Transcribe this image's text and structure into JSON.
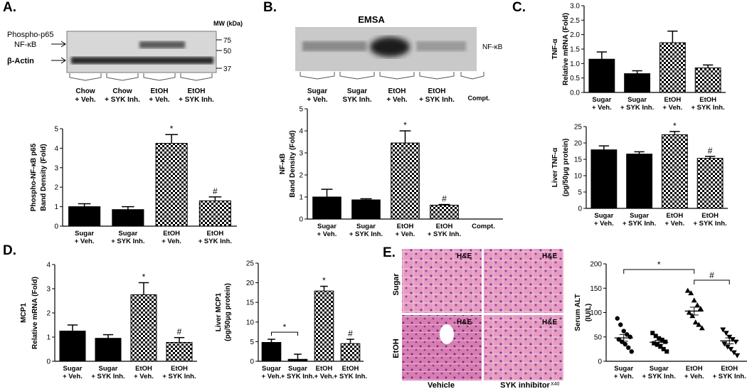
{
  "panel_letters": [
    "A.",
    "B.",
    "C.",
    "D.",
    "E."
  ],
  "blot": {
    "labels": [
      "Phospho-p65",
      "NF-κB",
      "β-Actin"
    ],
    "mw_header": "MW (kDa)",
    "mw_values": [
      "75",
      "50",
      "37"
    ],
    "lanes": [
      [
        "Chow",
        "+ Veh."
      ],
      [
        "Chow",
        "+ SYK Inh."
      ],
      [
        "EtOH",
        "+ Veh."
      ],
      [
        "EtOH",
        "+ SYK Inh."
      ]
    ]
  },
  "emsa": {
    "title": "EMSA",
    "band_label": "NF-κB",
    "lanes": [
      [
        "Sugar",
        "+ Veh."
      ],
      [
        "Sugar",
        "SYK Inh."
      ],
      [
        "EtOH",
        "+ Veh."
      ],
      [
        "EtOH",
        "+ SYK Inh."
      ],
      [
        "Compt."
      ]
    ]
  },
  "histology": {
    "row_labels": [
      "Sugar",
      "EtOH"
    ],
    "col_labels": [
      "Vehicle",
      "SYK inhibitor"
    ],
    "stain": "H&E",
    "magnification": "X40"
  },
  "chart_data": [
    {
      "id": "A",
      "type": "bar",
      "ylabel": [
        "Phospho-NF-κB p65",
        "Band Density (Fold)"
      ],
      "ylim": [
        0,
        5
      ],
      "yticks": [
        0,
        1,
        2,
        3,
        4,
        5
      ],
      "categories": [
        [
          "Sugar",
          "+ Veh."
        ],
        [
          "Sugar",
          "+ SYK Inh."
        ],
        [
          "EtOH",
          "+ Veh."
        ],
        [
          "EtOH",
          "+ SYK Inh."
        ]
      ],
      "values": [
        1.0,
        0.85,
        4.25,
        1.3
      ],
      "errors": [
        0.15,
        0.15,
        0.45,
        0.2
      ],
      "markers": [
        "",
        "",
        "*",
        "#"
      ],
      "fills": [
        "#000000",
        "#000000",
        "check",
        "check"
      ]
    },
    {
      "id": "B",
      "type": "bar",
      "ylabel": [
        "NF-κB",
        "Band Density (Fold)"
      ],
      "ylim": [
        0,
        5
      ],
      "yticks": [
        0,
        1,
        2,
        3,
        4,
        5
      ],
      "categories": [
        [
          "Sugar",
          "+ Veh."
        ],
        [
          "Sugar",
          "+ SYK Inh."
        ],
        [
          "EtOH",
          "+ Veh."
        ],
        [
          "EtOH",
          "+ SYK Inh."
        ],
        [
          "Compt."
        ]
      ],
      "values": [
        1.0,
        0.87,
        3.45,
        0.63,
        0
      ],
      "errors": [
        0.35,
        0.05,
        0.55,
        0.03,
        0
      ],
      "markers": [
        "",
        "",
        "*",
        "#",
        ""
      ],
      "fills": [
        "#000000",
        "#000000",
        "check",
        "check",
        "none"
      ]
    },
    {
      "id": "C1",
      "type": "bar",
      "ylabel": [
        "TNF-α",
        "Relative mRNA (Fold)"
      ],
      "ylim": [
        0,
        3.0
      ],
      "yticks": [
        0.0,
        0.5,
        1.0,
        1.5,
        2.0,
        2.5,
        3.0
      ],
      "categories": [
        [
          "Sugar",
          "+ Veh."
        ],
        [
          "Sugar",
          "+ SYK Inh."
        ],
        [
          "EtOH",
          "+ Veh."
        ],
        [
          "EtOH",
          "+ SYK Inh."
        ]
      ],
      "values": [
        1.15,
        0.65,
        1.72,
        0.85
      ],
      "errors": [
        0.25,
        0.1,
        0.4,
        0.1
      ],
      "markers": [
        "",
        "",
        "",
        ""
      ],
      "fills": [
        "#000000",
        "#000000",
        "check",
        "check"
      ]
    },
    {
      "id": "C2",
      "type": "bar",
      "ylabel": [
        "Liver TNF-α",
        "(pg/50μg protein)"
      ],
      "ylim": [
        0,
        25
      ],
      "yticks": [
        0,
        5,
        10,
        15,
        20,
        25
      ],
      "categories": [
        [
          "Sugar",
          "+ Veh."
        ],
        [
          "Sugar",
          "+ SYK Inh."
        ],
        [
          "EtOH",
          "+ Veh."
        ],
        [
          "EtOH",
          "+ SYK Inh."
        ]
      ],
      "values": [
        17.9,
        16.6,
        22.5,
        15.3
      ],
      "errors": [
        1.2,
        0.7,
        1.0,
        0.6
      ],
      "markers": [
        "",
        "",
        "*",
        "#"
      ],
      "fills": [
        "#000000",
        "#000000",
        "check",
        "check"
      ]
    },
    {
      "id": "D1",
      "type": "bar",
      "ylabel": [
        "MCP1",
        "Relative mRNA  (Fold)"
      ],
      "ylim": [
        0,
        4
      ],
      "yticks": [
        0,
        1,
        2,
        3,
        4
      ],
      "categories": [
        [
          "Sugar",
          "+ Veh."
        ],
        [
          "Sugar",
          "+ SYK Inh."
        ],
        [
          "EtOH",
          "+ Veh."
        ],
        [
          "EtOH",
          "+ SYK Inh."
        ]
      ],
      "values": [
        1.25,
        0.95,
        2.75,
        0.78
      ],
      "errors": [
        0.25,
        0.15,
        0.5,
        0.2
      ],
      "markers": [
        "",
        "",
        "*",
        "#"
      ],
      "fills": [
        "#000000",
        "#000000",
        "check",
        "check"
      ]
    },
    {
      "id": "D2",
      "type": "bar",
      "ylabel": [
        "Liver MCP1",
        "(pg/50μg protein)"
      ],
      "ylim": [
        0,
        25
      ],
      "yticks": [
        0,
        5,
        10,
        15,
        20,
        25
      ],
      "categories": [
        [
          "Sugar",
          "+ Veh."
        ],
        [
          "Sugar",
          "+ SYK Inh."
        ],
        [
          "EtOH",
          "+ Veh."
        ],
        [
          "EtOH",
          "+ SYK Inh."
        ]
      ],
      "values": [
        4.8,
        0.5,
        17.9,
        4.5
      ],
      "errors": [
        0.8,
        1.3,
        1.2,
        1.1
      ],
      "markers": [
        "",
        "",
        "*",
        "#"
      ],
      "fills": [
        "#000000",
        "#000000",
        "check",
        "check"
      ],
      "bracket": {
        "from": 0,
        "to": 1,
        "label": "*"
      }
    },
    {
      "id": "E",
      "type": "scatter",
      "ylabel": [
        "Serum ALT",
        "(IU/L)"
      ],
      "ylim": [
        0,
        200
      ],
      "yticks": [
        0,
        50,
        100,
        150,
        200
      ],
      "categories": [
        [
          "Sugar",
          "+ Veh."
        ],
        [
          "Sugar",
          "+ SYK Inh."
        ],
        [
          "EtOH",
          "+ Veh."
        ],
        [
          "EtOH",
          "+ SYK Inh."
        ]
      ],
      "markers_shape": [
        "circle",
        "square",
        "triangle-up",
        "triangle-down"
      ],
      "points": [
        [
          88,
          75,
          62,
          55,
          50,
          45,
          40,
          35,
          28,
          20
        ],
        [
          58,
          52,
          47,
          44,
          40,
          37,
          34,
          30,
          25,
          20
        ],
        [
          145,
          140,
          125,
          115,
          108,
          100,
          93,
          80,
          75,
          68
        ],
        [
          65,
          58,
          50,
          45,
          40,
          36,
          30,
          25,
          18,
          12
        ]
      ],
      "means": [
        48,
        39,
        103,
        42
      ],
      "sems": [
        7,
        4,
        8,
        6
      ],
      "brackets": [
        {
          "from": 0,
          "to": 2,
          "label": "*"
        },
        {
          "from": 2,
          "to": 3,
          "label": "#"
        }
      ]
    }
  ]
}
